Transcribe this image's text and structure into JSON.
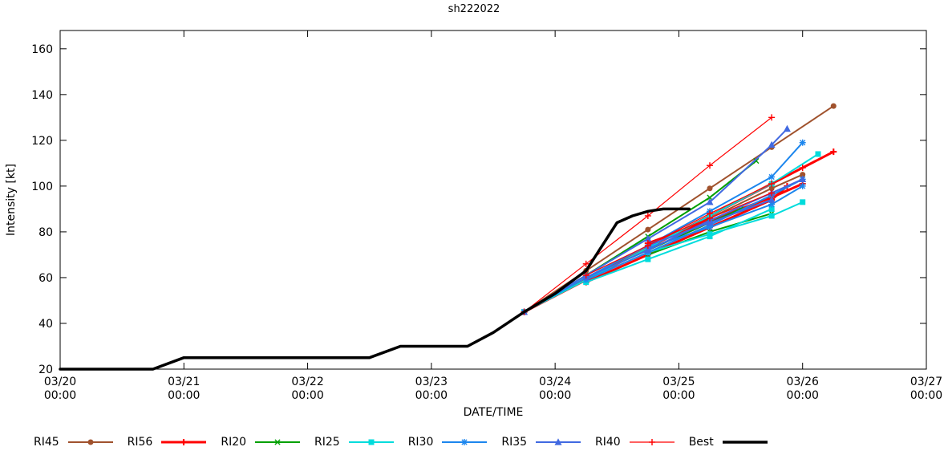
{
  "title": "sh222022",
  "chart_data": {
    "type": "line",
    "title": "sh222022",
    "xlabel": "DATE/TIME",
    "ylabel": "Intensity [kt]",
    "x_unit": "hours since 03/20 00:00",
    "x_range_hours": [
      0,
      168
    ],
    "ylim": [
      20,
      168
    ],
    "y_ticks": [
      20,
      40,
      60,
      80,
      100,
      120,
      140,
      160
    ],
    "x_ticks": [
      {
        "hour": 0,
        "date": "03/20",
        "time": "00:00"
      },
      {
        "hour": 24,
        "date": "03/21",
        "time": "00:00"
      },
      {
        "hour": 48,
        "date": "03/22",
        "time": "00:00"
      },
      {
        "hour": 72,
        "date": "03/23",
        "time": "00:00"
      },
      {
        "hour": 96,
        "date": "03/24",
        "time": "00:00"
      },
      {
        "hour": 120,
        "date": "03/25",
        "time": "00:00"
      },
      {
        "hour": 144,
        "date": "03/26",
        "time": "00:00"
      },
      {
        "hour": 168,
        "date": "03/27",
        "time": "00:00"
      }
    ],
    "grid": false,
    "legend_position": "bottom",
    "legend": [
      "RI45",
      "RI56",
      "RI20",
      "RI25",
      "RI30",
      "RI35",
      "RI40",
      "Best"
    ],
    "series": [
      {
        "name": "RI45",
        "color": "#a0522d",
        "marker": "circle",
        "width": 2,
        "runs": [
          [
            [
              90,
              45
            ],
            [
              102,
              63
            ],
            [
              114,
              81
            ],
            [
              126,
              99
            ],
            [
              138,
              117
            ],
            [
              150,
              135
            ]
          ],
          [
            [
              102,
              60
            ],
            [
              114,
              73
            ],
            [
              126,
              86
            ],
            [
              138,
              99
            ],
            [
              144,
              105
            ]
          ],
          [
            [
              114,
              72
            ],
            [
              126,
              84
            ],
            [
              138,
              95
            ]
          ]
        ]
      },
      {
        "name": "RI56",
        "color": "#ff0000",
        "marker": "plus",
        "width": 3,
        "runs": [
          [
            [
              90,
              45
            ],
            [
              102,
              59
            ],
            [
              114,
              73
            ],
            [
              126,
              87
            ],
            [
              138,
              101
            ],
            [
              150,
              115
            ]
          ],
          [
            [
              102,
              58
            ],
            [
              114,
              70
            ],
            [
              126,
              82
            ],
            [
              138,
              94
            ],
            [
              141,
              100
            ]
          ],
          [
            [
              114,
              75
            ],
            [
              126,
              85
            ],
            [
              138,
              95
            ],
            [
              144,
              101
            ]
          ]
        ]
      },
      {
        "name": "RI20",
        "color": "#00a000",
        "marker": "cross",
        "width": 2,
        "runs": [
          [
            [
              90,
              45
            ],
            [
              102,
              61
            ],
            [
              114,
              78
            ],
            [
              126,
              95
            ],
            [
              135,
              111
            ]
          ],
          [
            [
              102,
              60
            ],
            [
              114,
              72
            ],
            [
              126,
              84
            ],
            [
              132,
              90
            ]
          ],
          [
            [
              114,
              70
            ],
            [
              126,
              80
            ],
            [
              138,
              88
            ]
          ]
        ]
      },
      {
        "name": "RI25",
        "color": "#00dcdc",
        "marker": "square",
        "width": 2,
        "runs": [
          [
            [
              90,
              45
            ],
            [
              102,
              59
            ],
            [
              114,
              73
            ],
            [
              126,
              87
            ],
            [
              138,
              101
            ],
            [
              147,
              114
            ]
          ],
          [
            [
              102,
              58
            ],
            [
              114,
              68
            ],
            [
              126,
              78
            ],
            [
              138,
              90
            ]
          ],
          [
            [
              114,
              71
            ],
            [
              126,
              79
            ],
            [
              138,
              87
            ],
            [
              144,
              93
            ]
          ]
        ]
      },
      {
        "name": "RI30",
        "color": "#1c86ee",
        "marker": "asterisk",
        "width": 2,
        "runs": [
          [
            [
              90,
              45
            ],
            [
              102,
              60
            ],
            [
              114,
              74
            ],
            [
              126,
              89
            ],
            [
              138,
              104
            ],
            [
              144,
              119
            ]
          ],
          [
            [
              102,
              59
            ],
            [
              114,
              71
            ],
            [
              126,
              83
            ],
            [
              138,
              96
            ],
            [
              144,
              103
            ]
          ],
          [
            [
              114,
              73
            ],
            [
              126,
              82
            ],
            [
              138,
              92
            ],
            [
              144,
              100
            ]
          ]
        ]
      },
      {
        "name": "RI35",
        "color": "#4169e1",
        "marker": "triangle",
        "width": 2,
        "runs": [
          [
            [
              90,
              45
            ],
            [
              102,
              61
            ],
            [
              114,
              77
            ],
            [
              126,
              93
            ],
            [
              138,
              118
            ],
            [
              141,
              125
            ]
          ],
          [
            [
              102,
              60
            ],
            [
              114,
              72
            ],
            [
              126,
              85
            ],
            [
              138,
              97
            ],
            [
              144,
              103
            ]
          ],
          [
            [
              114,
              74
            ],
            [
              126,
              84
            ],
            [
              138,
              94
            ]
          ]
        ]
      },
      {
        "name": "RI40",
        "color": "#ff0000",
        "marker": "plus",
        "width": 1.2,
        "runs": [
          [
            [
              90,
              45
            ],
            [
              102,
              66
            ],
            [
              114,
              87
            ],
            [
              126,
              109
            ],
            [
              138,
              130
            ]
          ],
          [
            [
              102,
              61
            ],
            [
              114,
              74
            ],
            [
              126,
              88
            ],
            [
              138,
              101
            ],
            [
              144,
              108
            ]
          ],
          [
            [
              114,
              75
            ],
            [
              126,
              86
            ],
            [
              138,
              97
            ]
          ]
        ]
      },
      {
        "name": "Best",
        "color": "#000000",
        "marker": "none",
        "width": 3.5,
        "runs": [
          [
            [
              0,
              20
            ],
            [
              18,
              20
            ],
            [
              24,
              25
            ],
            [
              60,
              25
            ],
            [
              66,
              30
            ],
            [
              79,
              30
            ],
            [
              84,
              36
            ],
            [
              90,
              45
            ],
            [
              96,
              53
            ],
            [
              102,
              63
            ],
            [
              108,
              84
            ],
            [
              111,
              87
            ],
            [
              114,
              89
            ],
            [
              117,
              90
            ],
            [
              122,
              90
            ]
          ]
        ]
      }
    ]
  }
}
